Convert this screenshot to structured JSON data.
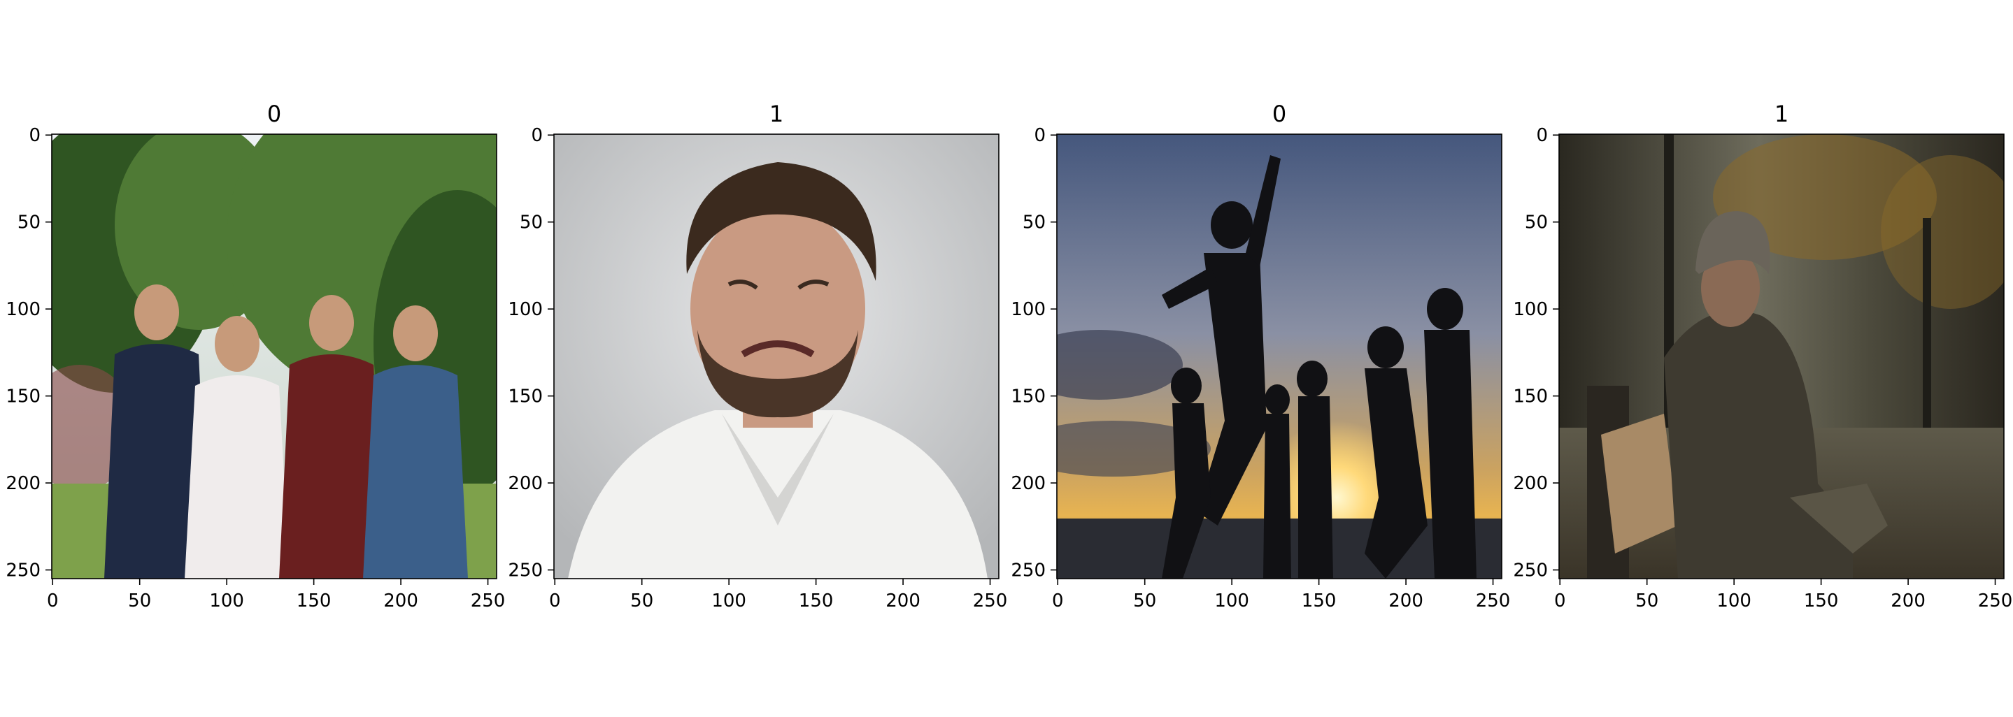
{
  "chart_data": {
    "type": "image_grid",
    "panels": [
      {
        "title": "0",
        "image": "group-of-four-adults-jogging-in-park",
        "xlim": [
          0,
          255
        ],
        "ylim": [
          255,
          0
        ],
        "xticks": [
          0,
          50,
          100,
          150,
          200,
          250
        ],
        "yticks": [
          0,
          50,
          100,
          150,
          200,
          250
        ],
        "colors": {
          "sky": "#e8eef2",
          "foliage": "#4f7a35",
          "foliage_dark": "#2f5522",
          "grass": "#7ea14b",
          "shirt1": "#1f2a44",
          "shirt2": "#f0ecec",
          "shirt3": "#6a1f1f",
          "shirt4": "#3b5f8a",
          "skin": "#c79a7a"
        }
      },
      {
        "title": "1",
        "image": "man-crying-grimacing-white-shirt",
        "xlim": [
          0,
          255
        ],
        "ylim": [
          255,
          0
        ],
        "xticks": [
          0,
          50,
          100,
          150,
          200,
          250
        ],
        "yticks": [
          0,
          50,
          100,
          150,
          200,
          250
        ],
        "colors": {
          "wall": "#d9dadb",
          "wall_dark": "#b9bbbd",
          "hair": "#3b2a1e",
          "skin": "#c99a82",
          "beard": "#4a3528",
          "shirt": "#f2f2f0",
          "shirt_shadow": "#d4d4d2"
        }
      },
      {
        "title": "0",
        "image": "silhouettes-of-children-jumping-at-sunset",
        "xlim": [
          0,
          255
        ],
        "ylim": [
          255,
          0
        ],
        "xticks": [
          0,
          50,
          100,
          150,
          200,
          250
        ],
        "yticks": [
          0,
          50,
          100,
          150,
          200,
          250
        ],
        "colors": {
          "sky_top": "#4a5f85",
          "sky_mid": "#8a8fa0",
          "sky_low": "#d9a85a",
          "sun": "#fff1b0",
          "water": "#2a2c33",
          "silhouette": "#111114",
          "cloud": "#3a3f52"
        }
      },
      {
        "title": "1",
        "image": "man-sitting-alone-on-park-bench-autumn",
        "xlim": [
          0,
          255
        ],
        "ylim": [
          255,
          0
        ],
        "xticks": [
          0,
          50,
          100,
          150,
          200,
          250
        ],
        "yticks": [
          0,
          50,
          100,
          150,
          200,
          250
        ],
        "colors": {
          "bg_dark": "#2c2a22",
          "bg_mid": "#5c5a48",
          "bg_fog": "#8a8a7a",
          "leaves": "#8a6a2a",
          "coat": "#3e3a30",
          "coat_light": "#5a5546",
          "hat": "#6a645a",
          "skin": "#8a6a55",
          "bag": "#a88a66",
          "ground": "#4a4438"
        }
      }
    ]
  }
}
